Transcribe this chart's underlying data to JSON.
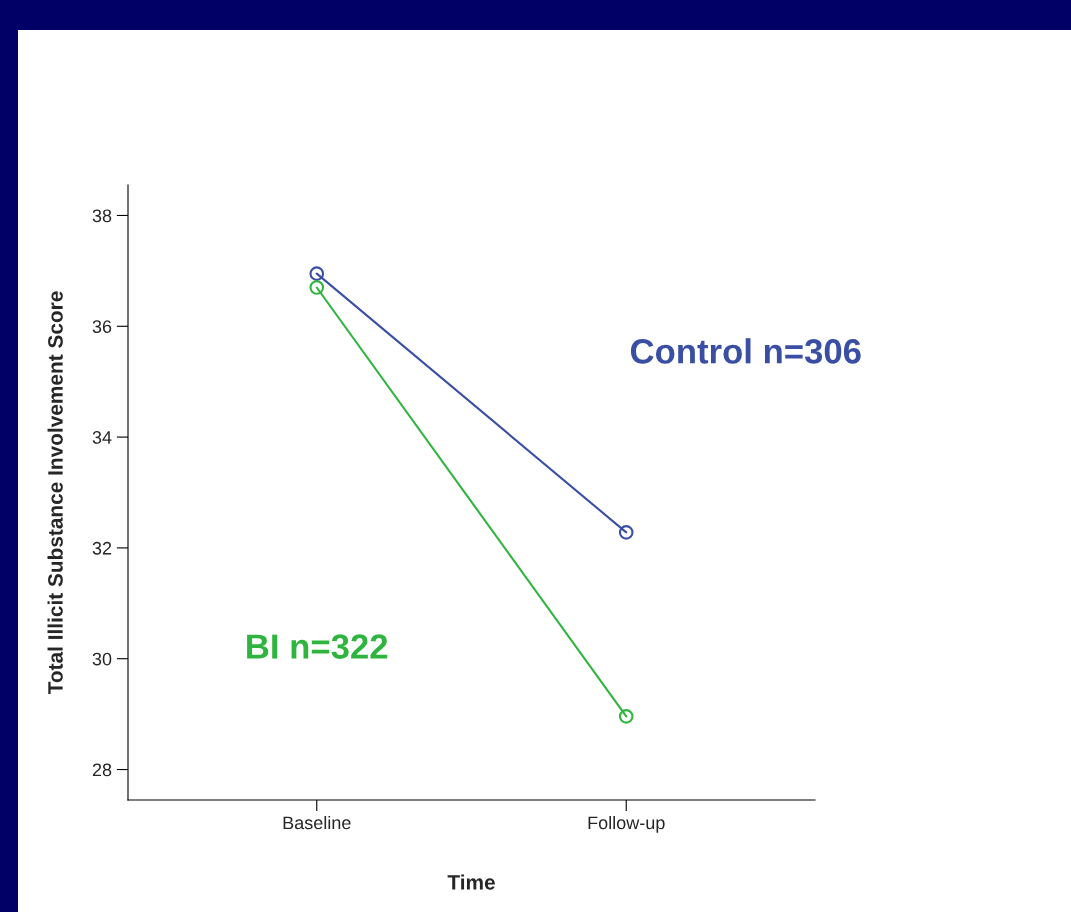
{
  "chart_data": {
    "type": "line",
    "xlabel": "Time",
    "ylabel": "Total Illicit Substance Involvement Score",
    "categories": [
      "Baseline",
      "Follow-up"
    ],
    "series": [
      {
        "name": "Control n=306",
        "color": "#3a4fa3",
        "values": [
          36.95,
          32.28
        ]
      },
      {
        "name": "BI n=322",
        "color": "#2fb53f",
        "values": [
          36.7,
          28.96
        ]
      }
    ],
    "ylim": [
      27.45,
      38.55
    ],
    "yticks": [
      28,
      30,
      32,
      34,
      36,
      38
    ],
    "grid": false,
    "legend": false,
    "marker": "circle",
    "line_style": "solid"
  }
}
